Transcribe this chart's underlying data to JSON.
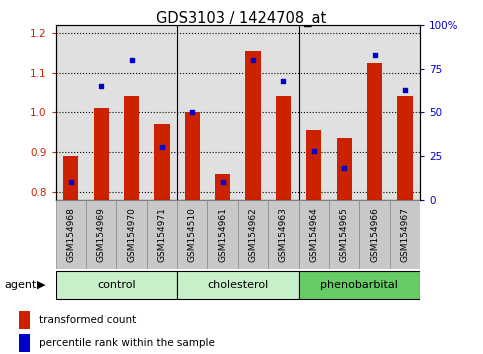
{
  "title": "GDS3103 / 1424708_at",
  "samples": [
    "GSM154968",
    "GSM154969",
    "GSM154970",
    "GSM154971",
    "GSM154510",
    "GSM154961",
    "GSM154962",
    "GSM154963",
    "GSM154964",
    "GSM154965",
    "GSM154966",
    "GSM154967"
  ],
  "transformed_count": [
    0.89,
    1.01,
    1.04,
    0.97,
    1.0,
    0.845,
    1.155,
    1.04,
    0.955,
    0.935,
    1.125,
    1.04
  ],
  "percentile_rank": [
    10,
    65,
    80,
    30,
    50,
    10,
    80,
    68,
    28,
    18,
    83,
    63
  ],
  "groups": [
    {
      "name": "control",
      "indices": [
        0,
        1,
        2,
        3
      ],
      "color": "#c8f0c8"
    },
    {
      "name": "cholesterol",
      "indices": [
        4,
        5,
        6,
        7
      ],
      "color": "#c8f0c8"
    },
    {
      "name": "phenobarbital",
      "indices": [
        8,
        9,
        10,
        11
      ],
      "color": "#66cc66"
    }
  ],
  "bar_color": "#cc2200",
  "dot_color": "#0000cc",
  "ylim_left": [
    0.78,
    1.22
  ],
  "ylim_right": [
    0,
    100
  ],
  "yticks_left": [
    0.8,
    0.9,
    1.0,
    1.1,
    1.2
  ],
  "yticks_right": [
    0,
    25,
    50,
    75,
    100
  ],
  "yticklabels_right": [
    "0",
    "25",
    "50",
    "75",
    "100%"
  ],
  "bar_bottom": 0.78,
  "plot_bg": "#e0e0e0",
  "tick_bg": "#c8c8c8",
  "agent_label": "agent",
  "legend_entries": [
    "transformed count",
    "percentile rank within the sample"
  ]
}
